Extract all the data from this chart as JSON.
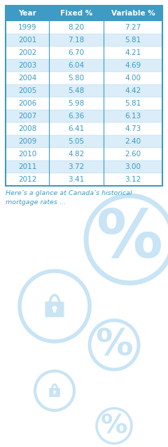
{
  "years": [
    "1999",
    "2001",
    "2002",
    "2003",
    "2004",
    "2005",
    "2006",
    "2007",
    "2008",
    "2009",
    "2010",
    "2011",
    "2012"
  ],
  "fixed": [
    "8.20",
    "7.18",
    "6.70",
    "6.04",
    "5.80",
    "5.48",
    "5.98",
    "6.36",
    "6.41",
    "5.05",
    "4.82",
    "3.72",
    "3.41"
  ],
  "variable": [
    "7.27",
    "5.81",
    "4.21",
    "4.69",
    "4.00",
    "4.42",
    "5.81",
    "6.13",
    "4.73",
    "2.40",
    "2.60",
    "3.00",
    "3.12"
  ],
  "header_bg": "#3d9bc4",
  "header_text": "#ffffff",
  "row_even_bg": "#daedf8",
  "row_odd_bg": "#ffffff",
  "cell_text": "#3d9bc4",
  "border_color": "#3d9bc4",
  "caption_text": "Here’s a glance at Canada’s historical\nmortgage rates …",
  "caption_color": "#3d9bc4",
  "bg_color": "#ffffff",
  "icon_color": "#c8e4f5",
  "fig_w": 2.4,
  "fig_h": 6.35,
  "dpi": 100
}
